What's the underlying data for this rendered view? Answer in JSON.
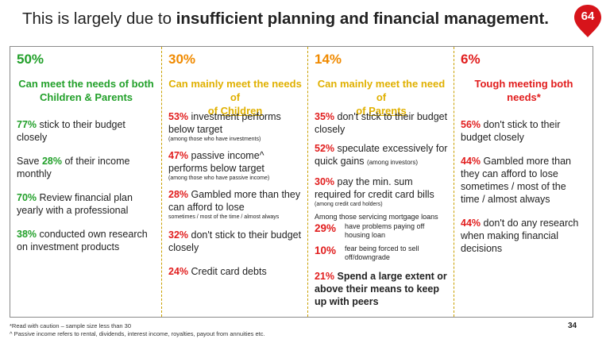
{
  "title": {
    "pre": "This is largely due to ",
    "bold": "insufficient planning and financial management."
  },
  "badge": "64",
  "page_number": "34",
  "footnotes": [
    "*Read with caution – sample size less than 30",
    "^ Passive income refers to rental, dividends, interest income, royalties, payout from annuities etc."
  ],
  "columns": [
    {
      "pct": "50%",
      "head_a": "Can meet the needs of both",
      "head_b": "Children & Parents",
      "items": [
        {
          "n": "77%",
          "t": " stick to their budget closely"
        },
        {
          "pre": "Save ",
          "n": "28%",
          "t": " of their income monthly"
        },
        {
          "n": "70%",
          "t": " Review financial plan yearly with a professional"
        },
        {
          "n": "38%",
          "t": " conducted own research on investment products"
        }
      ]
    },
    {
      "pct": "30%",
      "head_a": "Can mainly meet the needs of",
      "head_b": "Children",
      "items": [
        {
          "n": "53%",
          "t": " investment performs below target",
          "note": "(among those who have investments)"
        },
        {
          "n": "47%",
          "t": " passive income^ performs below target",
          "note": "(among those who have passive income)"
        },
        {
          "n": "28%",
          "t": " Gambled more than they can afford to lose",
          "note": "sometimes / most of the time / almost always"
        },
        {
          "n": "32%",
          "t": " don't stick to their budget closely"
        },
        {
          "n": "24%",
          "t": " Credit card debts"
        }
      ]
    },
    {
      "pct": "14%",
      "head_a": "Can mainly meet the need of",
      "head_b": "Parents",
      "items": [
        {
          "n": "35%",
          "t": " don't stick to their budget closely"
        },
        {
          "n": "52%",
          "t": " speculate excessively for quick gains",
          "note": "(among investors)"
        },
        {
          "n": "30%",
          "t": " pay the min. sum required for credit card bills",
          "note": "(among credit card holders)"
        }
      ],
      "mortgage": {
        "label": "Among those servicing mortgage loans",
        "rows": [
          {
            "n": "29%",
            "t": "have problems paying off housing loan"
          },
          {
            "n": "10%",
            "t": "fear being forced to sell off/downgrade"
          }
        ]
      },
      "last": {
        "n": "21%",
        "t": " Spend a large extent or above their means to keep up with peers"
      }
    },
    {
      "pct": "6%",
      "head_a": "Tough meeting both needs*",
      "head_b": "",
      "items": [
        {
          "n": "56%",
          "t": " don't stick to their budget closely"
        },
        {
          "n": "44%",
          "t": " Gambled more than they can afford to lose sometimes / most of the time / almost always"
        },
        {
          "n": "44%",
          "t": " don't do any research when making financial decisions"
        }
      ]
    }
  ],
  "colors": {
    "green": "#22a02a",
    "orange": "#f08a00",
    "gold": "#e0b000",
    "red": "#e11d1d",
    "badge": "#d7141a"
  }
}
